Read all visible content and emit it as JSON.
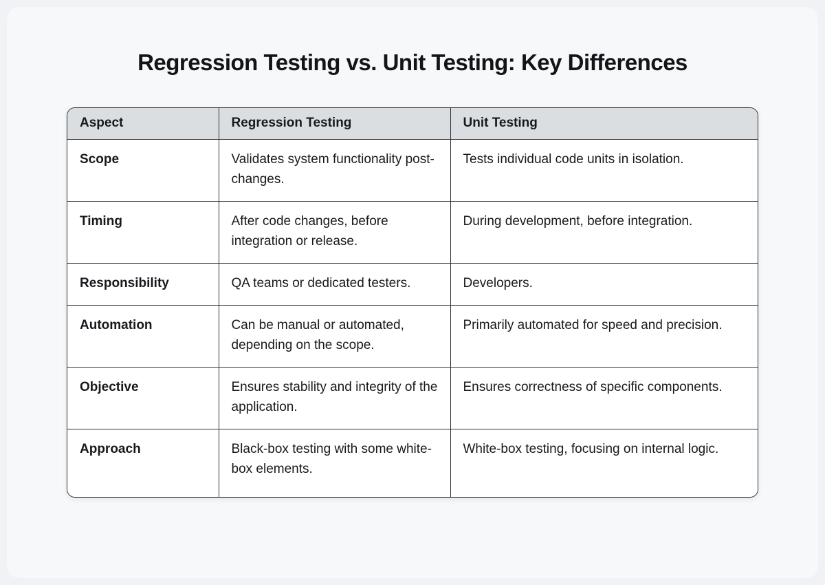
{
  "page": {
    "title": "Regression Testing vs. Unit Testing: Key Differences"
  },
  "table": {
    "headers": [
      "Aspect",
      "Regression Testing",
      "Unit Testing"
    ],
    "rows": [
      {
        "aspect": "Scope",
        "regression": "Validates system functionality post-changes.",
        "unit": "Tests individual code units in isolation."
      },
      {
        "aspect": "Timing",
        "regression": "After code changes, before integration or release.",
        "unit": "During development, before integration."
      },
      {
        "aspect": "Responsibility",
        "regression": "QA teams or dedicated testers.",
        "unit": "Developers."
      },
      {
        "aspect": "Automation",
        "regression": "Can be manual or automated, depending on the scope.",
        "unit": "Primarily automated for speed and precision."
      },
      {
        "aspect": "Objective",
        "regression": "Ensures stability and integrity of the application.",
        "unit": "Ensures correctness of specific components."
      },
      {
        "aspect": "Approach",
        "regression": "Black-box testing with some white-box elements.",
        "unit": "White-box testing, focusing on internal logic."
      }
    ]
  },
  "colors": {
    "page_background": "#f0f2f5",
    "card_background": "#f6f8fa",
    "header_background": "#dbdee1",
    "table_border": "#2b2f35",
    "cell_background": "#ffffff",
    "text": "#17191d"
  }
}
